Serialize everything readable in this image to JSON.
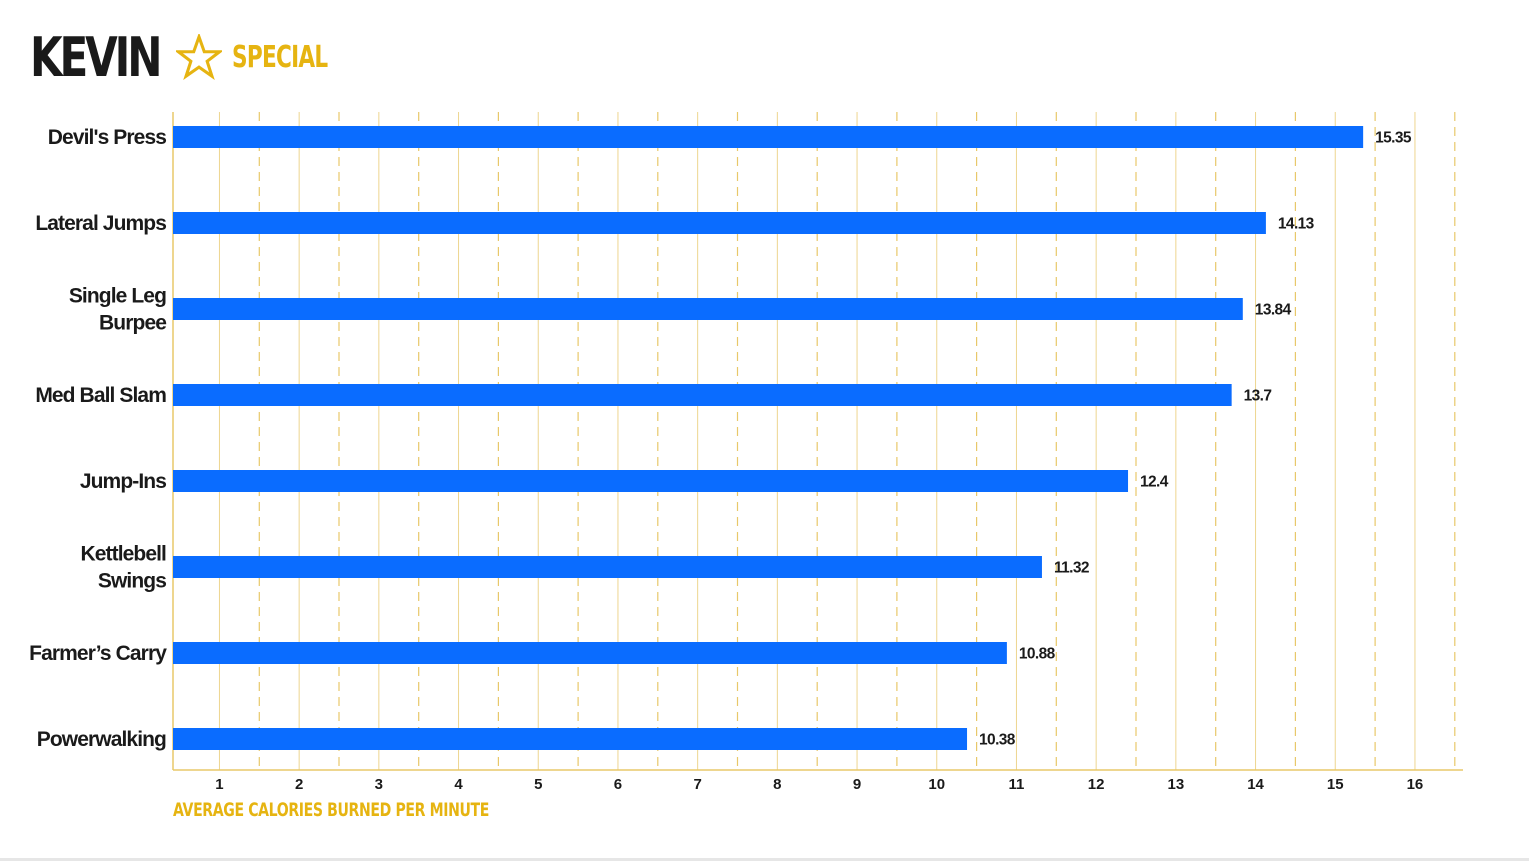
{
  "header": {
    "title": "KEVIN",
    "subtitle": "SPECIAL",
    "icon": "star-outline-icon"
  },
  "colors": {
    "bar": "#0a6cff",
    "grid": "#e8c86a",
    "accent": "#e6b411",
    "text": "#1a1a1a"
  },
  "chart_data": {
    "type": "bar",
    "orientation": "horizontal",
    "categories": [
      "Devil's Press",
      "Lateral Jumps",
      "Single Leg\nBurpee",
      "Med Ball Slam",
      "Jump-Ins",
      "Kettlebell\nSwings",
      "Farmer’s Carry",
      "Powerwalking"
    ],
    "values": [
      15.35,
      14.13,
      13.84,
      13.7,
      12.4,
      11.32,
      10.88,
      10.38
    ],
    "value_labels": [
      "15.35",
      "14.13",
      "13.84",
      "13.7",
      "12.4",
      "11.32",
      "10.88",
      "10.38"
    ],
    "xlabel": "AVERAGE CALORIES BURNED PER MINUTE",
    "ylabel": "",
    "xlim": [
      0.4,
      16.6
    ],
    "xticks": [
      1,
      2,
      3,
      4,
      5,
      6,
      7,
      8,
      9,
      10,
      11,
      12,
      13,
      14,
      15,
      16
    ],
    "minor_grid_dashed_halves": true,
    "grid": true,
    "legend": "none"
  }
}
